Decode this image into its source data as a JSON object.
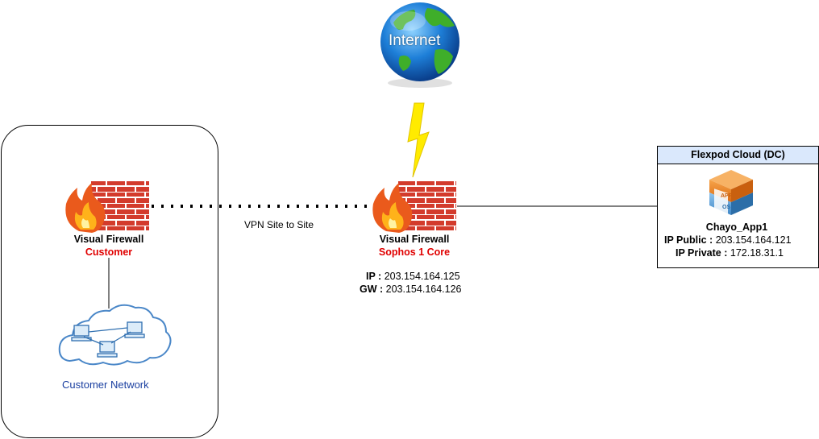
{
  "nodes": {
    "internet": {
      "label": "Internet"
    },
    "customer_firewall": {
      "title": "Visual Firewall",
      "subtitle": "Customer"
    },
    "sophos_firewall": {
      "title": "Visual Firewall",
      "subtitle": "Sophos 1 Core",
      "ip_key": "IP :",
      "ip_value": "203.154.164.125",
      "gw_key": "GW :",
      "gw_value": "203.154.164.126"
    },
    "customer_network": {
      "label": "Customer Network"
    },
    "flexpod_cloud": {
      "title": "Flexpod Cloud (DC)",
      "app_name": "Chayo_App1",
      "public_key": "IP Public :",
      "public_value": "203.154.164.121",
      "private_key": "IP Private :",
      "private_value": "172.18.31.1",
      "app_icon_top": "APP",
      "app_icon_bottom": "OS"
    }
  },
  "edges": {
    "vpn_label": "VPN Site to Site"
  },
  "colors": {
    "subtitle_red": "#e00000",
    "network_label_blue": "#1a3fa0",
    "panel_header_bg": "#dae8fc",
    "lightning_yellow": "#ffeb00",
    "brick_red": "#d33b2c"
  }
}
